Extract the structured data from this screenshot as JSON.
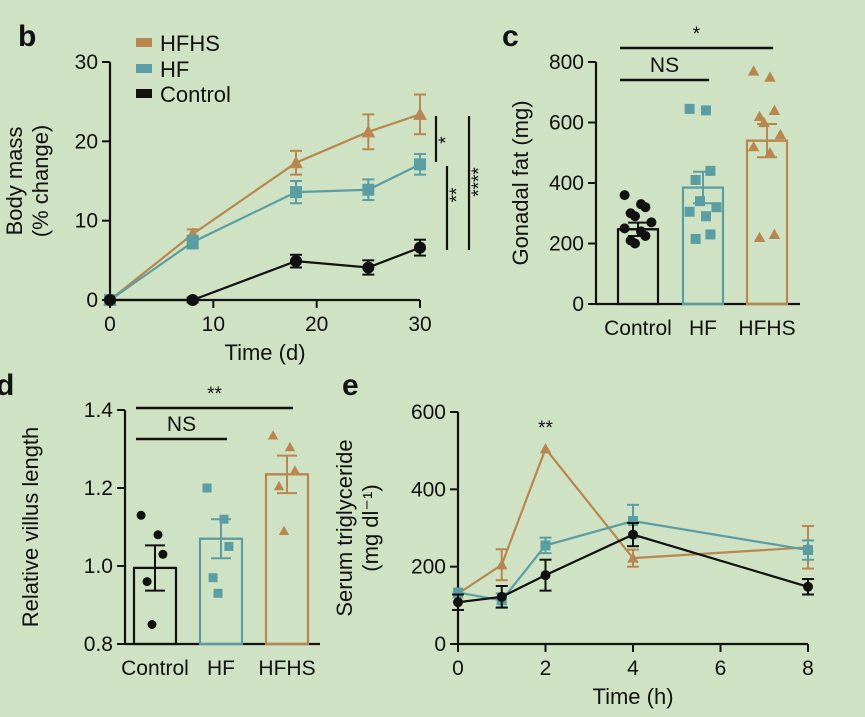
{
  "colors": {
    "background": "#cfe2c4",
    "HFHS": "#b8874f",
    "HF": "#5a9ea3",
    "Control": "#111111"
  },
  "chart_data": [
    {
      "id": "b",
      "panel": "b",
      "type": "line",
      "xlabel": "Time (d)",
      "ylabel_lines": [
        "Body mass",
        "(% change)"
      ],
      "xlim": [
        0,
        30
      ],
      "ylim": [
        0,
        30
      ],
      "xticks": [
        0,
        10,
        20,
        30
      ],
      "yticks": [
        0,
        10,
        20,
        30
      ],
      "legend": {
        "placement": "top-left",
        "entries": [
          "HFHS",
          "HF",
          "Control"
        ]
      },
      "series": [
        {
          "name": "HFHS",
          "marker": "triangle",
          "x": [
            0,
            8,
            18,
            25,
            30
          ],
          "y": [
            0,
            8.3,
            17.3,
            21.2,
            23.4
          ],
          "err": [
            0,
            0.6,
            1.5,
            2.2,
            2.5
          ]
        },
        {
          "name": "HF",
          "marker": "square",
          "x": [
            0,
            8,
            18,
            25,
            30
          ],
          "y": [
            0,
            7.3,
            13.6,
            13.9,
            17.1
          ],
          "err": [
            0,
            0.8,
            1.4,
            1.3,
            1.3
          ]
        },
        {
          "name": "Control",
          "marker": "circle",
          "x": [
            0,
            8,
            18,
            25,
            30
          ],
          "y": [
            0,
            0,
            4.9,
            4.1,
            6.6
          ],
          "err": [
            0,
            0.3,
            0.8,
            0.9,
            1.0
          ]
        }
      ],
      "significance": [
        "*",
        "**",
        "****"
      ]
    },
    {
      "id": "c",
      "panel": "c",
      "type": "bar",
      "ylabel": "Gonadal fat (mg)",
      "categories": [
        "Control",
        "HF",
        "HFHS"
      ],
      "values": [
        247,
        385,
        540
      ],
      "errors": [
        22,
        52,
        55
      ],
      "points": [
        [
          360,
          330,
          320,
          300,
          290,
          270,
          250,
          240,
          225,
          210,
          200
        ],
        [
          645,
          640,
          440,
          410,
          340,
          320,
          305,
          290,
          230,
          215
        ],
        [
          770,
          750,
          640,
          620,
          600,
          560,
          520,
          500,
          230,
          220
        ]
      ],
      "ylim": [
        0,
        800
      ],
      "yticks": [
        0,
        200,
        400,
        600,
        800
      ],
      "significance": [
        {
          "from": "Control",
          "to": "HF",
          "label": "NS"
        },
        {
          "from": "Control",
          "to": "HFHS",
          "label": "*"
        }
      ]
    },
    {
      "id": "d",
      "panel": "d",
      "type": "bar",
      "ylabel": "Relative villus length",
      "categories": [
        "Control",
        "HF",
        "HFHS"
      ],
      "values": [
        0.995,
        1.07,
        1.235
      ],
      "errors": [
        0.058,
        0.05,
        0.048
      ],
      "points": [
        [
          1.13,
          1.08,
          1.03,
          0.96,
          0.85
        ],
        [
          1.2,
          1.12,
          1.05,
          0.97,
          0.93
        ],
        [
          1.335,
          1.305,
          1.245,
          1.205,
          1.09
        ]
      ],
      "ylim": [
        0.8,
        1.4
      ],
      "yticks": [
        0.8,
        1.0,
        1.2,
        1.4
      ],
      "significance": [
        {
          "from": "Control",
          "to": "HF",
          "label": "NS"
        },
        {
          "from": "Control",
          "to": "HFHS",
          "label": "**"
        }
      ]
    },
    {
      "id": "e",
      "panel": "e",
      "type": "line",
      "xlabel": "Time (h)",
      "ylabel_lines": [
        "Serum triglyceride",
        "(mg dl⁻¹)"
      ],
      "xlim": [
        0,
        8
      ],
      "ylim": [
        0,
        600
      ],
      "xticks": [
        0,
        2,
        4,
        6,
        8
      ],
      "yticks": [
        0,
        200,
        400,
        600
      ],
      "series": [
        {
          "name": "HFHS",
          "marker": "triangle",
          "x": [
            0,
            1,
            2,
            4,
            8
          ],
          "y": [
            130,
            205,
            505,
            222,
            250
          ],
          "err": [
            0,
            40,
            0,
            22,
            55
          ]
        },
        {
          "name": "HF",
          "marker": "square",
          "x": [
            0,
            1,
            2,
            4,
            8
          ],
          "y": [
            133,
            113,
            255,
            318,
            243
          ],
          "err": [
            0,
            18,
            20,
            42,
            25
          ]
        },
        {
          "name": "Control",
          "marker": "circle",
          "x": [
            0,
            1,
            2,
            4,
            8
          ],
          "y": [
            108,
            122,
            178,
            283,
            148
          ],
          "err": [
            20,
            28,
            40,
            30,
            20
          ]
        }
      ],
      "annotation": "**"
    }
  ]
}
